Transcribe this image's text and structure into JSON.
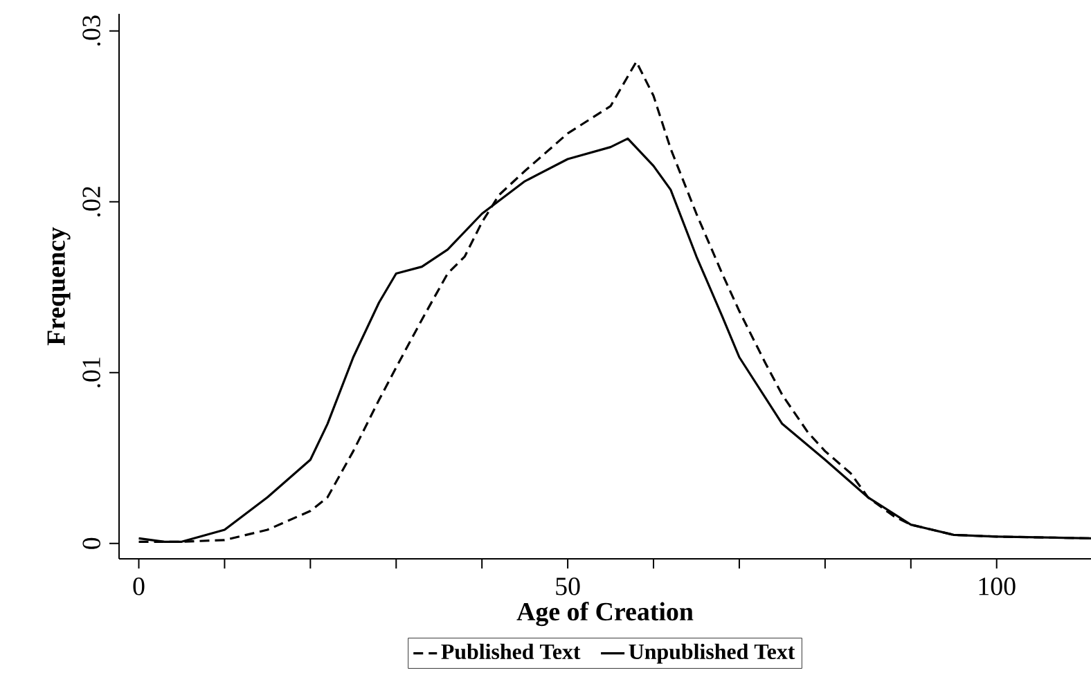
{
  "chart_data": {
    "type": "line",
    "xlabel": "Age of Creation",
    "ylabel": "Frequency",
    "xlim": [
      -2.3,
      111
    ],
    "ylim": [
      -0.0009,
      0.031
    ],
    "xticks": [
      0,
      {
        "value": 10,
        "label": null
      },
      {
        "value": 20,
        "label": null
      },
      {
        "value": 30,
        "label": null
      },
      {
        "value": 40,
        "label": null
      },
      50,
      {
        "value": 60,
        "label": null
      },
      {
        "value": 70,
        "label": null
      },
      {
        "value": 80,
        "label": null
      },
      {
        "value": 90,
        "label": null
      },
      100
    ],
    "yticks": [
      0,
      {
        "value": 0.01,
        "label": ".01"
      },
      {
        "value": 0.02,
        "label": ".02"
      },
      {
        "value": 0.03,
        "label": ".03"
      }
    ],
    "grid": false,
    "legend": "bottom",
    "marker": "none",
    "series": [
      {
        "name": "Published Text",
        "color": "#000000",
        "line_style": "dashed",
        "x": [
          0,
          5,
          10,
          15,
          20,
          22,
          25,
          28,
          30,
          33,
          36,
          38,
          40,
          42,
          45,
          50,
          55,
          58,
          60,
          62,
          65,
          68,
          70,
          73,
          75,
          78,
          80,
          83,
          85,
          88,
          90,
          95,
          100,
          111
        ],
        "values": [
          0.0001,
          0.0001,
          0.0002,
          0.0008,
          0.0019,
          0.0027,
          0.0054,
          0.0084,
          0.0103,
          0.0131,
          0.0158,
          0.0168,
          0.0188,
          0.0204,
          0.0218,
          0.024,
          0.0256,
          0.0282,
          0.0262,
          0.0231,
          0.0193,
          0.0158,
          0.0136,
          0.0106,
          0.0087,
          0.0065,
          0.0054,
          0.0041,
          0.0027,
          0.0016,
          0.0011,
          0.0005,
          0.0004,
          0.0003
        ]
      },
      {
        "name": "Unpublished Text",
        "color": "#000000",
        "line_style": "solid",
        "x": [
          0,
          3,
          5,
          10,
          15,
          20,
          22,
          25,
          28,
          30,
          33,
          36,
          40,
          45,
          50,
          55,
          57,
          60,
          62,
          65,
          68,
          70,
          75,
          80,
          85,
          90,
          95,
          100,
          111
        ],
        "values": [
          0.0003,
          0.0001,
          0.0001,
          0.0008,
          0.0027,
          0.0049,
          0.007,
          0.0109,
          0.0141,
          0.0158,
          0.0162,
          0.0172,
          0.0193,
          0.0212,
          0.0225,
          0.0232,
          0.0237,
          0.0221,
          0.0207,
          0.0168,
          0.0133,
          0.0109,
          0.007,
          0.0049,
          0.0027,
          0.0011,
          0.0005,
          0.0004,
          0.0003
        ]
      }
    ]
  }
}
